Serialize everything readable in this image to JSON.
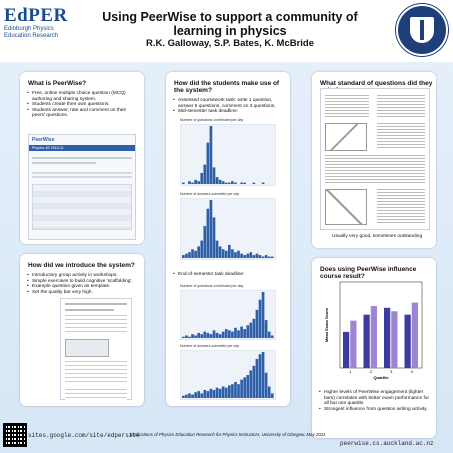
{
  "header": {
    "logo_title": "EdPER",
    "logo_sub_1": "Edinburgh Physics",
    "logo_sub_2": "Education Research",
    "title": "Using PeerWise to support a community of learning in physics",
    "authors": "R.K. Galloway, S.P. Bates, K. McBride"
  },
  "panels": {
    "what": {
      "title": "What is PeerWise?",
      "bullets": [
        "Free, online multiple choice question (MCQ) authoring and sharing system.",
        "Students create their own questions.",
        "Students answer, rate and comment on their peers' questions."
      ],
      "shot_title": "PeerWise",
      "shot_course": "Physics 1B 2010-11"
    },
    "intro": {
      "title": "How did we introduce the system?",
      "bullets": [
        "Introductory group activity in workshops.",
        "Simple exercises to build cognitive 'scaffolding'.",
        "Example question given as template.",
        "Set the quality bar very high."
      ]
    },
    "use": {
      "title": "How did the students make use of the system?",
      "bullets": [
        "Assessed coursework task: write 1 question, answer 5 questions, comment on 3 questions.",
        "Mid-semester task deadline:"
      ],
      "bullet_end": "End-of-semester task deadline:",
      "chart1_title": "Number of questions contributed per day",
      "chart2_title": "Number of answers submitted per day",
      "chart3_title": "Number of questions contributed per day",
      "chart4_title": "Number of answers submitted per day"
    },
    "standard": {
      "title": "What standard of questions did they write?",
      "caption": "Usually very good, sometimes outstanding"
    },
    "influence": {
      "title": "Does using PeerWise influence course result?",
      "axis_label": "Mean Exam Score",
      "x_label": "Quartile",
      "bullets": [
        "Higher levels of PeerWise engagement (lighter bars) correlates with better exam performance for all but one quartile.",
        "Strongest influence from question writing activity."
      ]
    }
  },
  "footer": {
    "left_url": "sites.google.com/site/edpersite",
    "middle": "Implications of Physics Education Research for Physics Instructors, University of Glasgow, May 2011",
    "right_url": "peerwise.cs.auckland.ac.nz"
  },
  "chart_data": [
    {
      "type": "bar",
      "title": "Number of questions contributed per day",
      "values": [
        1,
        0,
        2,
        1,
        3,
        2,
        8,
        14,
        30,
        42,
        12,
        5,
        3,
        2,
        1,
        1,
        2,
        1,
        0,
        1,
        1,
        0,
        0,
        1,
        0,
        0,
        1,
        0,
        0,
        0
      ]
    },
    {
      "type": "bar",
      "title": "Number of answers submitted per day",
      "values": [
        2,
        3,
        4,
        6,
        5,
        8,
        12,
        22,
        34,
        40,
        28,
        12,
        8,
        6,
        5,
        9,
        6,
        4,
        5,
        3,
        2,
        3,
        4,
        2,
        3,
        2,
        1,
        2,
        1,
        1
      ]
    },
    {
      "type": "bar",
      "title": "Number of questions contributed per day",
      "values": [
        1,
        2,
        1,
        3,
        2,
        4,
        3,
        5,
        4,
        3,
        6,
        4,
        3,
        5,
        7,
        6,
        5,
        8,
        6,
        9,
        7,
        10,
        12,
        15,
        22,
        30,
        36,
        14,
        5,
        2
      ]
    },
    {
      "type": "bar",
      "title": "Number of answers submitted per day",
      "values": [
        2,
        3,
        4,
        3,
        5,
        6,
        4,
        7,
        6,
        8,
        7,
        9,
        8,
        10,
        9,
        11,
        12,
        14,
        12,
        16,
        18,
        20,
        24,
        28,
        34,
        38,
        40,
        22,
        10,
        4
      ]
    },
    {
      "type": "bar",
      "title": "",
      "ylabel": "Mean Exam Score",
      "xlabel": "Quartile",
      "categories": [
        "1",
        "2",
        "3",
        "4"
      ],
      "ylim": [
        0,
        100
      ],
      "series": [
        {
          "values": [
            42,
            62,
            70,
            62
          ]
        },
        {
          "values": [
            55,
            72,
            66,
            76
          ]
        }
      ]
    }
  ],
  "colors": {
    "accent": "#2f5fa8",
    "light_bar": "#9c86d4",
    "dark_bar": "#3d3aa0",
    "background": "#dce9f7"
  }
}
